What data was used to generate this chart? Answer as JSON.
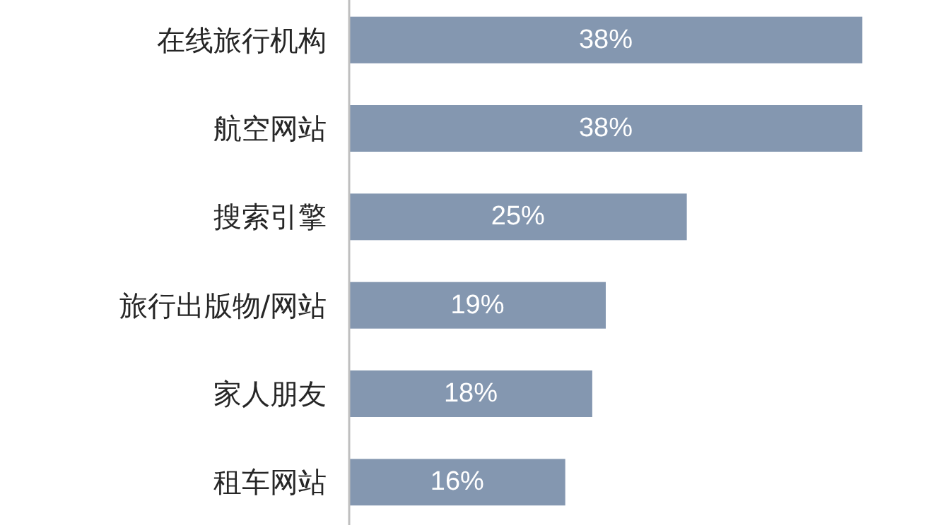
{
  "chart_data": {
    "type": "bar",
    "orientation": "horizontal",
    "categories": [
      "在线旅行机构",
      "航空网站",
      "搜索引擎",
      "旅行出版物/网站",
      "家人朋友",
      "租车网站"
    ],
    "values": [
      38,
      38,
      25,
      19,
      18,
      16
    ],
    "color": "#8497b0",
    "data_labels": true,
    "value_labels": [
      "38%",
      "38%",
      "25%",
      "19%",
      "18%",
      "16%"
    ]
  }
}
